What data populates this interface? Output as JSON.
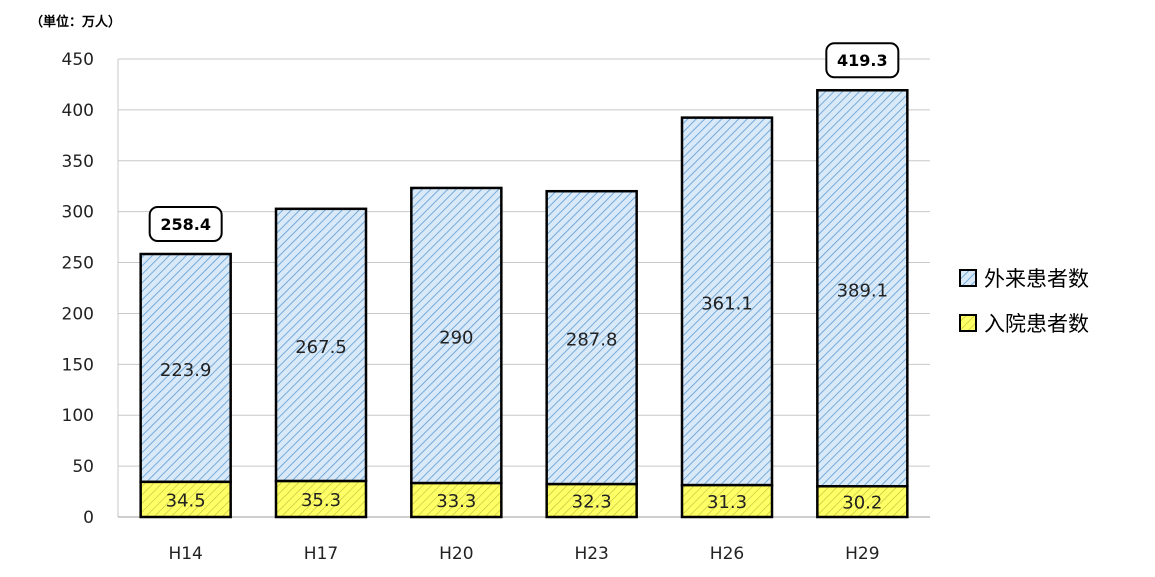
{
  "unit_label": "（単位：万人）",
  "colors": {
    "outpatient_fill": "#d9e9f7",
    "outpatient_hatch": "#5b9bd5",
    "inpatient_fill": "#ffff66",
    "inpatient_hatch": "#bdbd3a",
    "grid": "#c8c8c8"
  },
  "chart_data": {
    "type": "bar",
    "stacked": true,
    "categories": [
      "H14",
      "H17",
      "H20",
      "H23",
      "H26",
      "H29"
    ],
    "series": [
      {
        "name": "入院患者数",
        "values": [
          34.5,
          35.3,
          33.3,
          32.3,
          31.3,
          30.2
        ]
      },
      {
        "name": "外来患者数",
        "values": [
          223.9,
          267.5,
          290,
          287.8,
          361.1,
          389.1
        ]
      }
    ],
    "value_labels": {
      "入院患者数": [
        "34.5",
        "35.3",
        "33.3",
        "32.3",
        "31.3",
        "30.2"
      ],
      "外来患者数": [
        "223.9",
        "267.5",
        "290",
        "287.8",
        "361.1",
        "389.1"
      ]
    },
    "total_annotations": [
      {
        "category": "H14",
        "label": "258.4",
        "value": 258.4
      },
      {
        "category": "H29",
        "label": "419.3",
        "value": 419.3
      }
    ],
    "ylim": [
      0,
      450
    ],
    "yticks": [
      0,
      50,
      100,
      150,
      200,
      250,
      300,
      350,
      400,
      450
    ],
    "grid": true,
    "legend": {
      "position": "right",
      "items": [
        "外来患者数",
        "入院患者数"
      ]
    }
  }
}
